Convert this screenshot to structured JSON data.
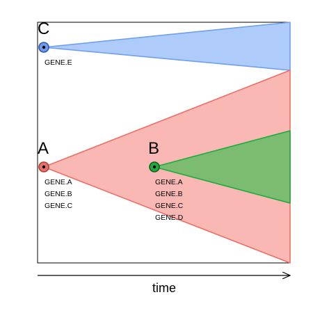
{
  "axis": {
    "x_label": "time"
  },
  "clones": [
    {
      "id": "C",
      "label": "C",
      "genes": [
        "GENE.E"
      ],
      "fill_color": "#aecbfa",
      "line_color": "#6fa0ee",
      "dot_fill": "#6f9be8",
      "dot_stroke": "#2a55b3"
    },
    {
      "id": "A",
      "label": "A",
      "genes": [
        "GENE.A",
        "GENE.B",
        "GENE.C"
      ],
      "fill_color": "#f9b8b4",
      "line_color": "#ee6f66",
      "dot_fill": "#e2746e",
      "dot_stroke": "#b13b34"
    },
    {
      "id": "B",
      "label": "B",
      "genes": [
        "GENE.A",
        "GENE.B",
        "GENE.C",
        "GENE.D"
      ],
      "fill_color": "#7bbc71",
      "line_color": "#1aab3c",
      "dot_fill": "#22a83f",
      "dot_stroke": "#0d5f20"
    }
  ]
}
